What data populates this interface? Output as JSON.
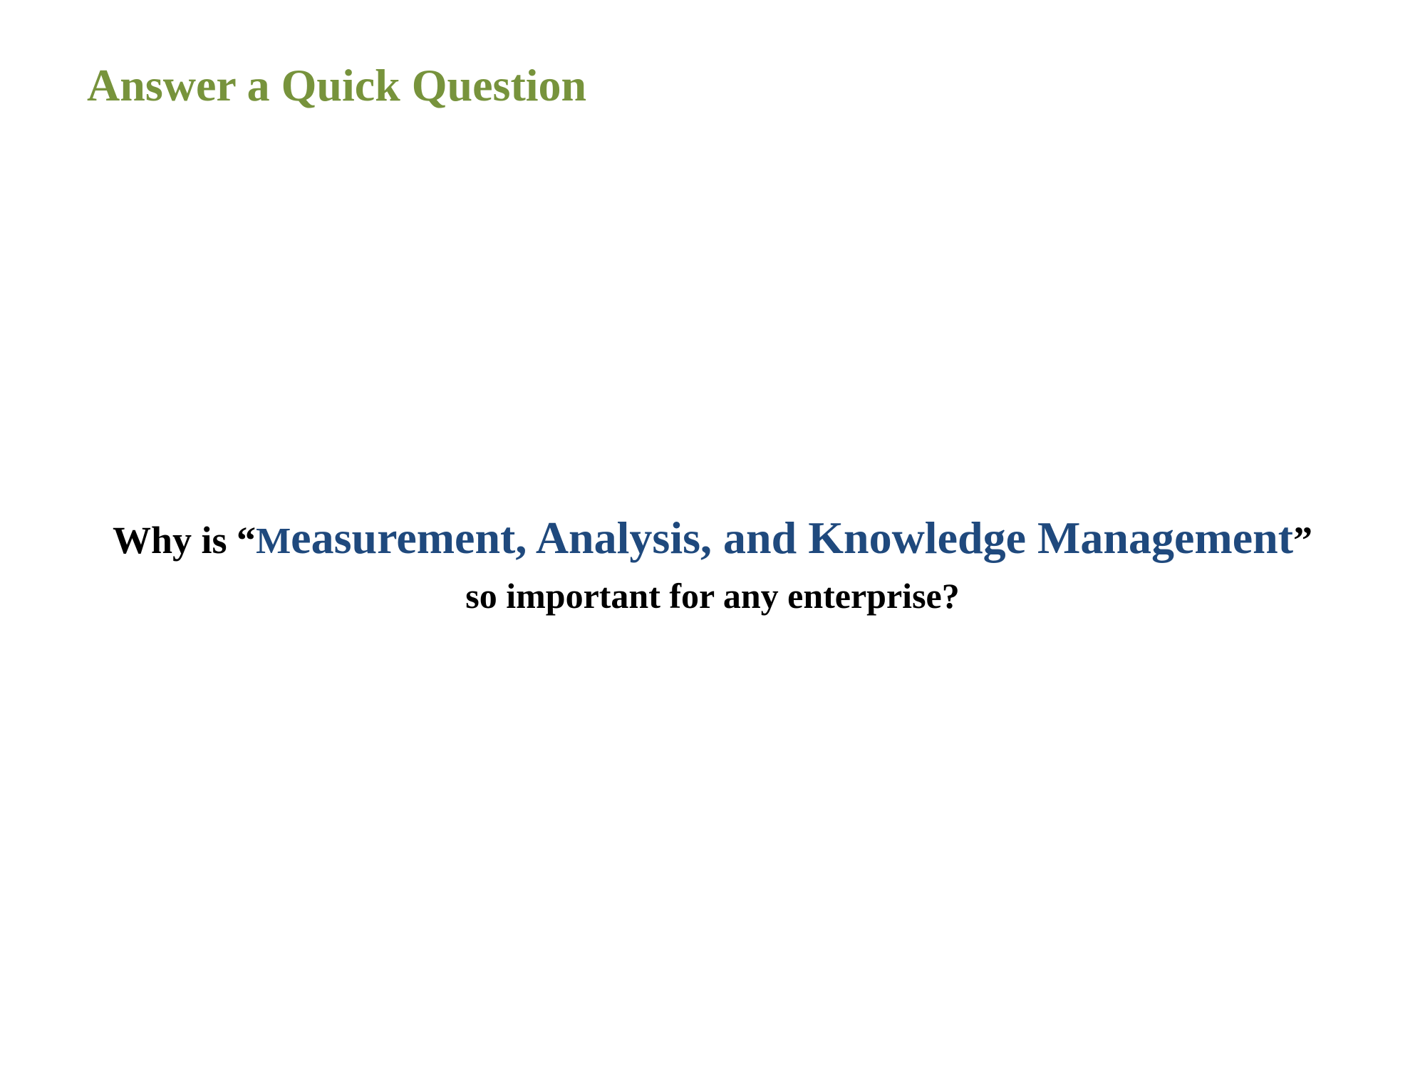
{
  "slide": {
    "title": "Answer a Quick Question",
    "question": {
      "prefix": "Why is “",
      "topic_first_letter": "M",
      "topic_rest": "easurement, Analysis, and Knowledge Management",
      "quote_close": "”",
      "line2": "so important for any enterprise?"
    }
  },
  "colors": {
    "title": "#77933c",
    "topic": "#1f497d",
    "text": "#000000",
    "background": "#ffffff"
  }
}
